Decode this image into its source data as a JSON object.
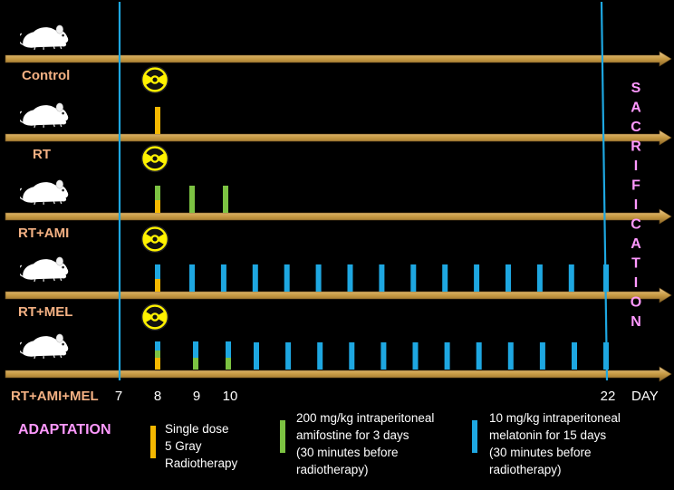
{
  "groups": [
    {
      "name": "Control"
    },
    {
      "name": "RT"
    },
    {
      "name": "RT+AMI"
    },
    {
      "name": "RT+MEL"
    },
    {
      "name": "RT+AMI+MEL"
    }
  ],
  "day_labels": [
    "7",
    "8",
    "9",
    "10",
    "22"
  ],
  "day_unit": "DAY",
  "sacrification": "SACRIFICATION",
  "adaptation": "ADAPTATION",
  "legend": [
    {
      "lines": [
        "Single dose",
        "5 Gray",
        "Radiotherapy"
      ],
      "color": "#f5b800"
    },
    {
      "lines": [
        "200 mg/kg intraperitoneal",
        "amifostine for 3 days",
        "(30 minutes before",
        "radiotherapy)"
      ],
      "color": "#7cc242"
    },
    {
      "lines": [
        "10 mg/kg intraperitoneal",
        "melatonin for 15 days",
        "(30 minutes before",
        "radiotherapy)"
      ],
      "color": "#1ea7e1"
    }
  ],
  "colors": {
    "background": "#000000",
    "arrow": "#c8a04a",
    "group_label": "#f4b183",
    "accent_pink": "#ff99ff",
    "timeline_line": "#1ea7e1",
    "radiation": "#f5b800",
    "amifostine": "#7cc242",
    "melatonin": "#1ea7e1"
  }
}
